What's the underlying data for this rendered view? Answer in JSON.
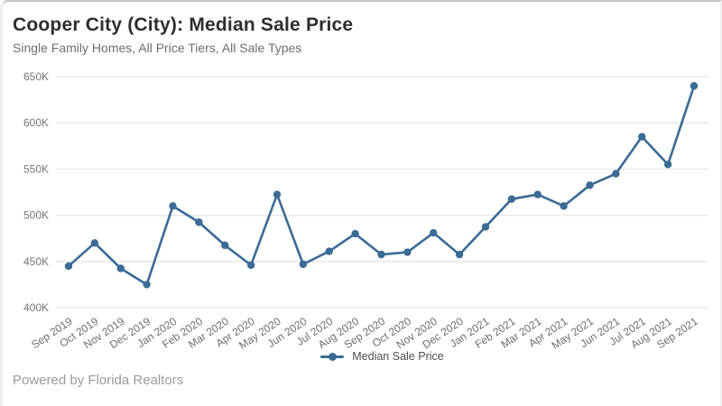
{
  "page": {
    "attribution": "Powered by Florida Realtors"
  },
  "colors": {
    "line": "#3a6b95",
    "grid": "#e6e6e6",
    "axis_text": "#757575",
    "x_axis_text": "#6e6e6e",
    "title_text": "#2e2e2e",
    "subtitle_text": "#6e6e6e",
    "legend_text": "#4e4e4e",
    "attribution_text": "#9b9b9b"
  },
  "chart_data": {
    "type": "line",
    "title": "Cooper City (City): Median Sale Price",
    "subtitle": "Single Family Homes, All Price Tiers, All Sale Types",
    "categories": [
      "Sep 2019",
      "Oct 2019",
      "Nov 2019",
      "Dec 2019",
      "Jan 2020",
      "Feb 2020",
      "Mar 2020",
      "Apr 2020",
      "May 2020",
      "Jun 2020",
      "Jul 2020",
      "Aug 2020",
      "Sep 2020",
      "Oct 2020",
      "Nov 2020",
      "Dec 2020",
      "Jan 2021",
      "Feb 2021",
      "Mar 2021",
      "Apr 2021",
      "May 2021",
      "Jun 2021",
      "Jul 2021",
      "Aug 2021",
      "Sep 2021"
    ],
    "series": [
      {
        "name": "Median Sale Price",
        "color": "#3a6b95",
        "values": [
          445000,
          470000,
          442500,
          425000,
          510000,
          492500,
          467500,
          446000,
          522500,
          447000,
          461000,
          480000,
          457500,
          460000,
          481000,
          457500,
          487500,
          517500,
          522500,
          510000,
          532500,
          545000,
          585000,
          555000,
          640000
        ]
      }
    ],
    "unit": "USD",
    "xlabel": "",
    "ylabel": "",
    "ylim": [
      400000,
      650000
    ],
    "y_ticks": [
      {
        "label": "400K",
        "value": 400000
      },
      {
        "label": "450K",
        "value": 450000
      },
      {
        "label": "500K",
        "value": 500000
      },
      {
        "label": "550K",
        "value": 550000
      },
      {
        "label": "600K",
        "value": 600000
      },
      {
        "label": "650K",
        "value": 650000
      }
    ],
    "grid": "horizontal",
    "legend_position": "bottom",
    "marker": "circle"
  }
}
